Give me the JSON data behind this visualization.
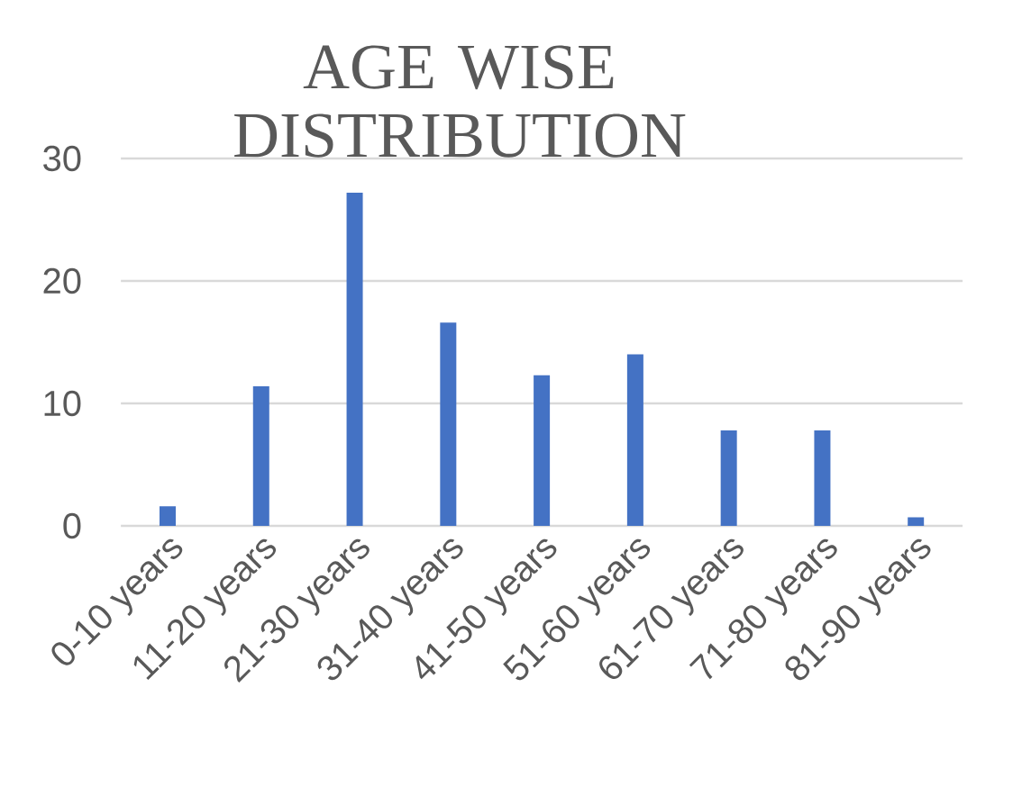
{
  "chart_data": {
    "type": "bar",
    "title": "AGE WISE DISTRIBUTION",
    "categories": [
      "0-10 years",
      "11-20 years",
      "21-30 years",
      "31-40 years",
      "41-50 years",
      "51-60 years",
      "61-70 years",
      "71-80 years",
      "81-90 years"
    ],
    "values": [
      1.6,
      11.4,
      27.2,
      16.6,
      12.3,
      14.0,
      7.8,
      7.8,
      0.7
    ],
    "color": "#4472c4",
    "ylim": [
      0,
      30
    ],
    "yticks": [
      0,
      10,
      20,
      30
    ],
    "grid": "y"
  }
}
